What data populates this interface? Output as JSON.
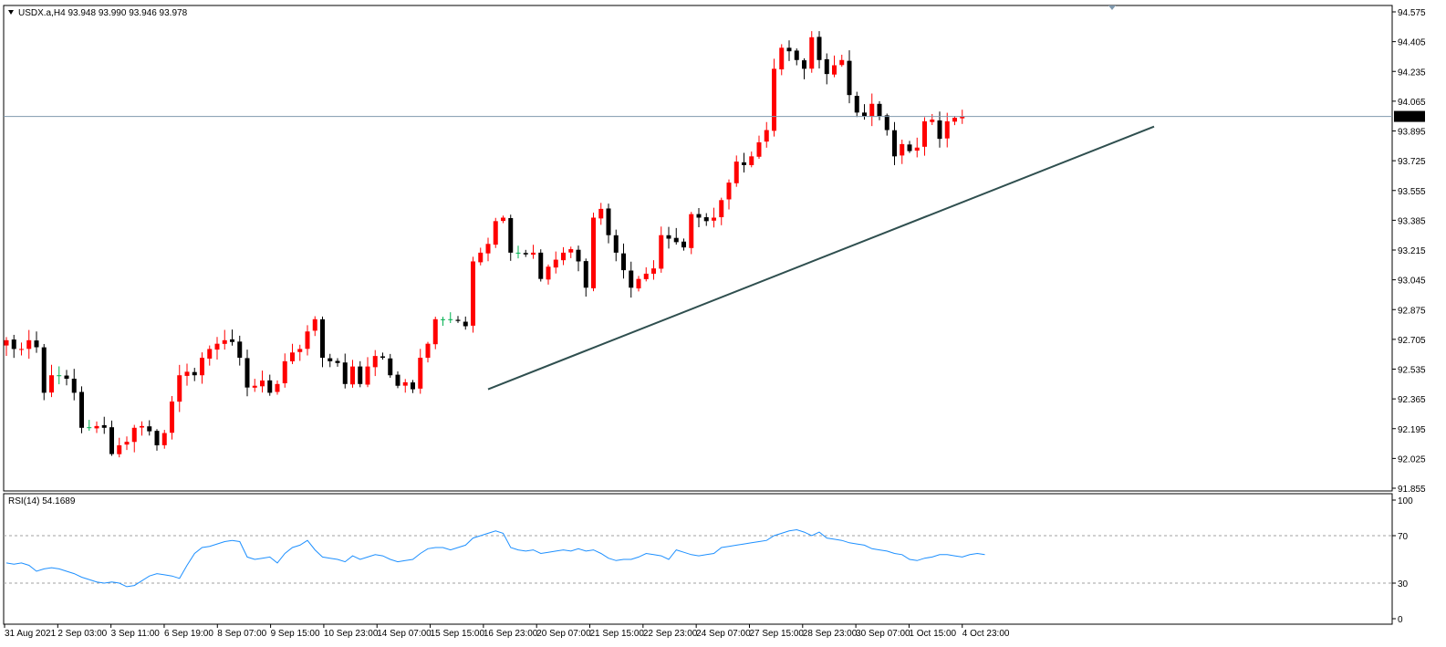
{
  "colors": {
    "background": "#ffffff",
    "border": "#000000",
    "bull": "#ff0000",
    "bear": "#000000",
    "doji": "#00b050",
    "price_line": "#7f98ad",
    "trendline": "#2f4f4f",
    "rsi_line": "#1e90ff",
    "rsi_level": "#a0a0a0",
    "price_label_bg": "#000000",
    "price_label_fg": "#ffffff"
  },
  "price_panel": {
    "header": "USDX.a,H4  93.948 93.990 93.946 93.978",
    "current_price": "93.978"
  },
  "rsi_panel": {
    "header": "RSI(14) 54.1689"
  },
  "chart_data": [
    {
      "type": "candlestick",
      "symbol": "USDX.a",
      "timeframe": "H4",
      "ylim": [
        91.855,
        94.575
      ],
      "y_ticks": [
        "94.575",
        "94.405",
        "94.235",
        "94.065",
        "93.895",
        "93.725",
        "93.555",
        "93.385",
        "93.215",
        "93.045",
        "92.875",
        "92.705",
        "92.535",
        "92.365",
        "92.195",
        "92.025",
        "91.855"
      ],
      "x_ticks": [
        "31 Aug 2021",
        "2 Sep 03:00",
        "3 Sep 11:00",
        "6 Sep 19:00",
        "8 Sep 07:00",
        "9 Sep 15:00",
        "10 Sep 23:00",
        "14 Sep 07:00",
        "15 Sep 15:00",
        "16 Sep 23:00",
        "20 Sep 07:00",
        "21 Sep 15:00",
        "22 Sep 23:00",
        "24 Sep 07:00",
        "27 Sep 15:00",
        "28 Sep 23:00",
        "30 Sep 07:00",
        "1 Oct 15:00",
        "4 Oct 23:00"
      ],
      "last_price": 93.978,
      "close_series": [
        92.7,
        92.65,
        92.65,
        92.7,
        92.66,
        92.4,
        92.5,
        92.5,
        92.48,
        92.4,
        92.2,
        92.2,
        92.21,
        92.2,
        92.05,
        92.1,
        92.12,
        92.2,
        92.21,
        92.18,
        92.1,
        92.17,
        92.35,
        92.5,
        92.52,
        92.5,
        92.6,
        92.65,
        92.68,
        92.7,
        92.69,
        92.6,
        92.43,
        92.44,
        92.47,
        92.4,
        92.45,
        92.58,
        92.63,
        92.65,
        92.75,
        92.82,
        92.6,
        92.58,
        92.57,
        92.45,
        92.55,
        92.45,
        92.55,
        92.61,
        92.6,
        92.5,
        92.44,
        92.46,
        92.42,
        92.6,
        92.68,
        92.82,
        92.82,
        92.82,
        92.81,
        92.78,
        93.15,
        93.2,
        93.25,
        93.38,
        93.4,
        93.2,
        93.2,
        93.19,
        93.2,
        93.05,
        93.12,
        93.16,
        93.2,
        93.22,
        93.15,
        93.0,
        93.4,
        93.45,
        93.3,
        93.2,
        93.1,
        93.0,
        93.05,
        93.08,
        93.11,
        93.3,
        93.28,
        93.26,
        93.23,
        93.42,
        93.4,
        93.38,
        93.4,
        93.5,
        93.6,
        93.72,
        93.7,
        93.75,
        93.83,
        93.9,
        94.25,
        94.37,
        94.35,
        94.3,
        94.25,
        94.43,
        94.3,
        94.22,
        94.27,
        94.3,
        94.1,
        94.0,
        93.98,
        94.05,
        93.98,
        93.9,
        93.75,
        93.82,
        93.78,
        93.8,
        93.95,
        93.96,
        93.85,
        93.95,
        93.97,
        93.978
      ],
      "support_trendline": {
        "from": {
          "time": "15 Sep 15:00",
          "price": 92.42
        },
        "to": {
          "time": "5 Oct",
          "price": 93.92
        }
      }
    },
    {
      "type": "line",
      "name": "RSI(14)",
      "last_value": 54.1689,
      "ylim": [
        0,
        100
      ],
      "y_ticks": [
        "100",
        "70",
        "30",
        "0"
      ],
      "levels": [
        70,
        30
      ],
      "values": [
        47,
        46,
        47,
        45,
        40,
        42,
        43,
        42,
        40,
        38,
        35,
        33,
        31,
        30,
        31,
        30,
        27,
        28,
        32,
        36,
        38,
        37,
        36,
        34,
        45,
        55,
        60,
        61,
        63,
        65,
        66,
        65,
        52,
        50,
        51,
        52,
        47,
        55,
        60,
        62,
        66,
        58,
        52,
        51,
        50,
        48,
        53,
        50,
        52,
        54,
        53,
        50,
        48,
        49,
        50,
        55,
        59,
        60,
        60,
        58,
        60,
        62,
        68,
        70,
        72,
        74,
        72,
        60,
        58,
        57,
        58,
        55,
        56,
        57,
        58,
        57,
        59,
        57,
        58,
        55,
        51,
        49,
        50,
        50,
        52,
        55,
        54,
        53,
        50,
        58,
        56,
        54,
        53,
        54,
        55,
        60,
        61,
        62,
        63,
        64,
        65,
        66,
        70,
        72,
        74,
        75,
        73,
        70,
        73,
        68,
        67,
        66,
        64,
        63,
        62,
        59,
        58,
        57,
        55,
        54,
        50,
        49,
        51,
        52,
        54,
        54,
        53,
        52,
        54,
        55,
        54
      ]
    }
  ]
}
